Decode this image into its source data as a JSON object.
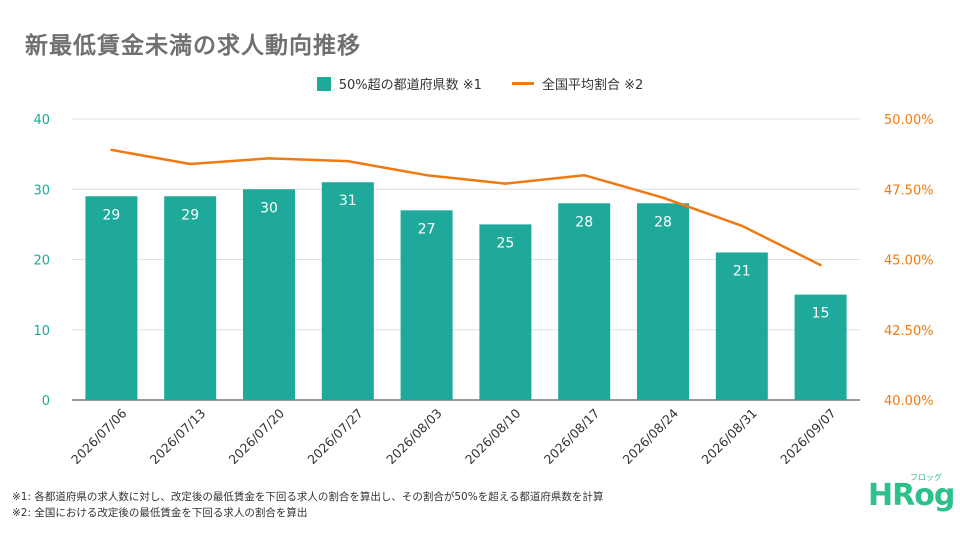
{
  "title": "新最低賃金未満の求人動向推移",
  "legend": {
    "bar_label": "50%超の都道府県数 ※1",
    "line_label": "全国平均割合 ※2"
  },
  "colors": {
    "bar": "#1fa99a",
    "line": "#f07a12",
    "grid": "#e0e0e0",
    "axis_left": "#1fa99a",
    "axis_right": "#f07a12"
  },
  "chart_data": {
    "type": "bar",
    "categories": [
      "2026/07/06",
      "2026/07/13",
      "2026/07/20",
      "2026/07/27",
      "2026/08/03",
      "2026/08/10",
      "2026/08/17",
      "2026/08/24",
      "2026/08/31",
      "2026/09/07"
    ],
    "series": [
      {
        "name": "50%超の都道府県数 ※1",
        "type": "bar",
        "axis": "left",
        "values": [
          29,
          29,
          30,
          31,
          27,
          25,
          28,
          28,
          21,
          15
        ]
      },
      {
        "name": "全国平均割合 ※2",
        "type": "line",
        "axis": "right",
        "values": [
          48.9,
          48.4,
          48.6,
          48.5,
          48.0,
          47.7,
          48.0,
          47.2,
          46.2,
          44.8
        ]
      }
    ],
    "y_left": {
      "ylim": [
        0,
        40
      ],
      "ticks": [
        "0",
        "10",
        "20",
        "30",
        "40"
      ]
    },
    "y_right": {
      "ylim": [
        40,
        50
      ],
      "ticks": [
        "40.00%",
        "42.50%",
        "45.00%",
        "47.50%",
        "50.00%"
      ]
    },
    "grid": true,
    "legend_position": "top-center"
  },
  "footnotes": [
    "※1: 各都道府県の求人数に対し、改定後の最低賃金を下回る求人の割合を算出し、その割合が50%を超える都道府県数を計算",
    "※2: 全国における改定後の最低賃金を下回る求人の割合を算出"
  ],
  "logo": {
    "main": "HRog",
    "small": "フロッグ"
  }
}
